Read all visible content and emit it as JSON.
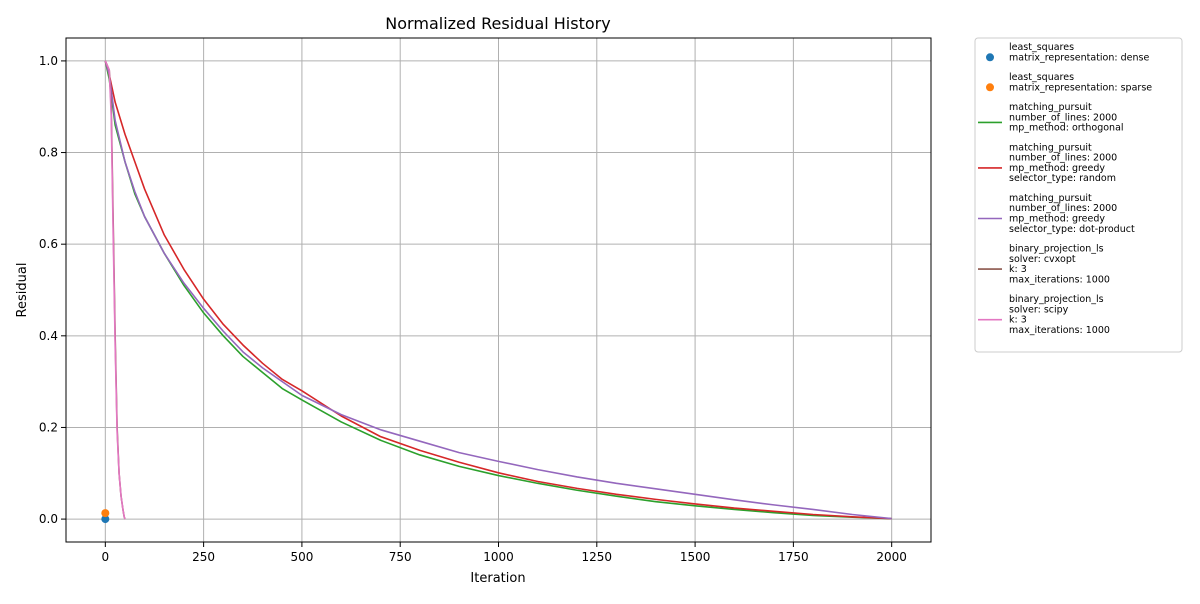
{
  "chart_data": {
    "type": "line",
    "title": "Normalized Residual History",
    "xlabel": "Iteration",
    "ylabel": "Residual",
    "xlim": [
      -100,
      2100
    ],
    "ylim": [
      -0.05,
      1.05
    ],
    "xticks": [
      0,
      250,
      500,
      750,
      1000,
      1250,
      1500,
      1750,
      2000
    ],
    "yticks": [
      0.0,
      0.2,
      0.4,
      0.6,
      0.8,
      1.0
    ],
    "xtick_labels": [
      "0",
      "250",
      "500",
      "750",
      "1000",
      "1250",
      "1500",
      "1750",
      "2000"
    ],
    "ytick_labels": [
      "0.0",
      "0.2",
      "0.4",
      "0.6",
      "0.8",
      "1.0"
    ],
    "grid": true,
    "legend_position": "outside-right",
    "series": [
      {
        "name": "least_squares\nmatrix_representation: dense",
        "label_lines": [
          "least_squares",
          "matrix_representation: dense"
        ],
        "kind": "scatter",
        "color": "#1f77b4",
        "x": [
          0
        ],
        "y": [
          0.0
        ]
      },
      {
        "name": "least_squares\nmatrix_representation: sparse",
        "label_lines": [
          "least_squares",
          "matrix_representation: sparse"
        ],
        "kind": "scatter",
        "color": "#ff7f0e",
        "x": [
          0
        ],
        "y": [
          0.013
        ]
      },
      {
        "name": "matching_pursuit\nnumber_of_lines: 2000\nmp_method: orthogonal",
        "label_lines": [
          "matching_pursuit",
          "number_of_lines: 2000",
          "mp_method: orthogonal"
        ],
        "kind": "line",
        "color": "#2ca02c",
        "x": [
          0,
          10,
          25,
          50,
          75,
          100,
          150,
          200,
          250,
          300,
          350,
          400,
          450,
          500,
          600,
          700,
          800,
          900,
          1000,
          1100,
          1200,
          1300,
          1400,
          1500,
          1600,
          1700,
          1800,
          1900,
          2000
        ],
        "y": [
          1.0,
          0.96,
          0.86,
          0.78,
          0.71,
          0.66,
          0.58,
          0.51,
          0.45,
          0.4,
          0.355,
          0.32,
          0.285,
          0.26,
          0.212,
          0.172,
          0.14,
          0.115,
          0.095,
          0.078,
          0.063,
          0.05,
          0.038,
          0.029,
          0.021,
          0.014,
          0.008,
          0.004,
          0.001
        ]
      },
      {
        "name": "matching_pursuit\nnumber_of_lines: 2000\nmp_method: greedy\nselector_type: random",
        "label_lines": [
          "matching_pursuit",
          "number_of_lines: 2000",
          "mp_method: greedy",
          "selector_type: random"
        ],
        "kind": "line",
        "color": "#d62728",
        "x": [
          0,
          10,
          25,
          50,
          75,
          100,
          150,
          200,
          250,
          300,
          350,
          400,
          450,
          500,
          600,
          700,
          800,
          900,
          1000,
          1100,
          1200,
          1300,
          1400,
          1500,
          1600,
          1700,
          1800,
          1900,
          2000
        ],
        "y": [
          1.0,
          0.97,
          0.91,
          0.84,
          0.78,
          0.72,
          0.62,
          0.545,
          0.48,
          0.425,
          0.38,
          0.34,
          0.305,
          0.28,
          0.225,
          0.18,
          0.15,
          0.124,
          0.101,
          0.082,
          0.067,
          0.054,
          0.043,
          0.033,
          0.024,
          0.017,
          0.01,
          0.005,
          0.001
        ]
      },
      {
        "name": "matching_pursuit\nnumber_of_lines: 2000\nmp_method: greedy\nselector_type: dot-product",
        "label_lines": [
          "matching_pursuit",
          "number_of_lines: 2000",
          "mp_method: greedy",
          "selector_type: dot-product"
        ],
        "kind": "line",
        "color": "#9467bd",
        "x": [
          0,
          10,
          25,
          50,
          75,
          100,
          150,
          200,
          250,
          300,
          350,
          400,
          450,
          500,
          600,
          700,
          800,
          900,
          1000,
          1100,
          1200,
          1300,
          1400,
          1500,
          1600,
          1700,
          1800,
          1900,
          2000
        ],
        "y": [
          1.0,
          0.97,
          0.87,
          0.78,
          0.715,
          0.66,
          0.58,
          0.515,
          0.46,
          0.41,
          0.365,
          0.33,
          0.3,
          0.27,
          0.228,
          0.195,
          0.17,
          0.145,
          0.126,
          0.108,
          0.092,
          0.078,
          0.066,
          0.054,
          0.042,
          0.031,
          0.021,
          0.01,
          0.001
        ]
      },
      {
        "name": "binary_projection_ls\nsolver: cvxopt\nk: 3\nmax_iterations: 1000",
        "label_lines": [
          "binary_projection_ls",
          "solver: cvxopt",
          "k: 3",
          "max_iterations: 1000"
        ],
        "kind": "line",
        "color": "#8c564b",
        "x": [
          0,
          10,
          15,
          20,
          25,
          30,
          35,
          40,
          45,
          48,
          50
        ],
        "y": [
          1.0,
          0.98,
          0.9,
          0.65,
          0.4,
          0.2,
          0.1,
          0.05,
          0.02,
          0.005,
          0.0
        ]
      },
      {
        "name": "binary_projection_ls\nsolver: scipy\nk: 3\nmax_iterations: 1000",
        "label_lines": [
          "binary_projection_ls",
          "solver: scipy",
          "k: 3",
          "max_iterations: 1000"
        ],
        "kind": "line",
        "color": "#e377c2",
        "x": [
          0,
          10,
          15,
          20,
          25,
          30,
          35,
          40,
          45,
          48,
          50
        ],
        "y": [
          1.0,
          0.98,
          0.88,
          0.62,
          0.38,
          0.19,
          0.1,
          0.05,
          0.02,
          0.005,
          0.0
        ]
      }
    ]
  }
}
